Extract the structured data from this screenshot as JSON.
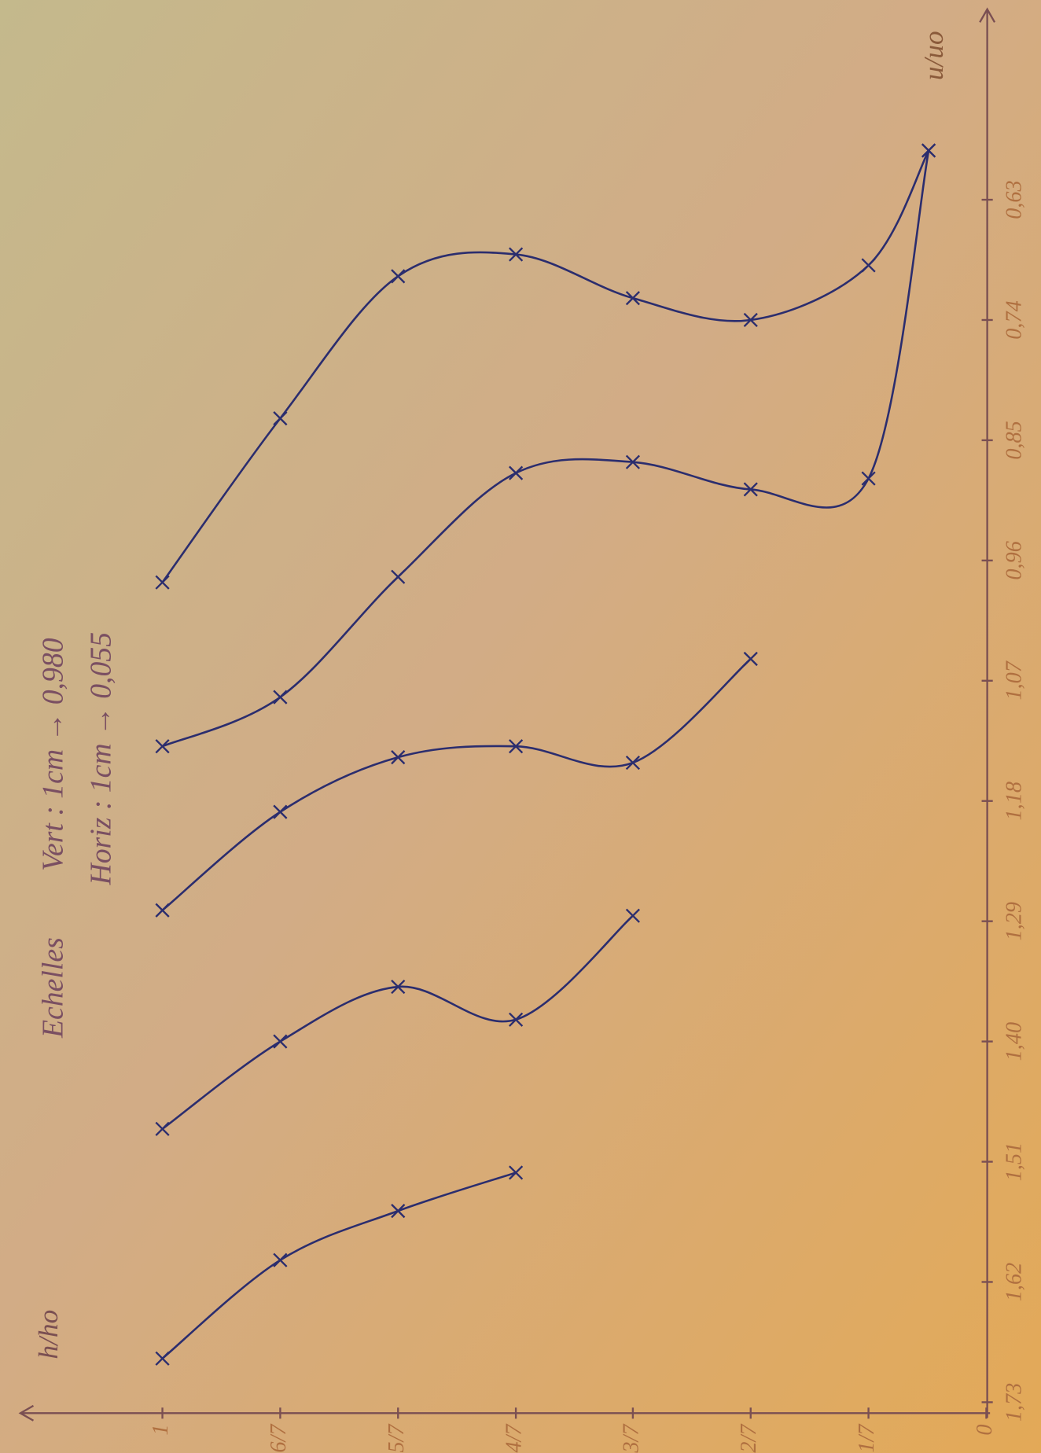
{
  "chart_data": {
    "type": "line",
    "notes": [
      "Echelles",
      "Vert : 1cm → 0,980",
      "Horiz : 1cm → 0,055"
    ],
    "x_label": "h/ho",
    "y_label": "u/uo",
    "xlim": [
      0,
      1.16
    ],
    "ylim": [
      0.46,
      1.74
    ],
    "xticks": [
      {
        "value": 1,
        "label": "1"
      },
      {
        "value": 0.857,
        "label": "6/7"
      },
      {
        "value": 0.714,
        "label": "5/7"
      },
      {
        "value": 0.571,
        "label": "4/7"
      },
      {
        "value": 0.429,
        "label": "3/7"
      },
      {
        "value": 0.286,
        "label": "2/7"
      },
      {
        "value": 0.143,
        "label": "1/7"
      },
      0
    ],
    "yticks": [
      {
        "value": 1.73,
        "label": "1,73"
      },
      {
        "value": 1.62,
        "label": "1,62"
      },
      {
        "value": 1.51,
        "label": "1,51"
      },
      {
        "value": 1.4,
        "label": "1,40"
      },
      {
        "value": 1.29,
        "label": "1,29"
      },
      {
        "value": 1.18,
        "label": "1,18"
      },
      {
        "value": 1.07,
        "label": "1,07"
      },
      {
        "value": 0.96,
        "label": "0,96"
      },
      {
        "value": 0.85,
        "label": "0,85"
      },
      {
        "value": 0.74,
        "label": "0,74"
      },
      {
        "value": 0.63,
        "label": "0,63"
      }
    ],
    "color": "#2b2d6e",
    "axis_color": "#7a4f52",
    "series": [
      {
        "x": [
          1,
          0.857,
          0.714,
          0.571
        ],
        "values": [
          1.69,
          1.6,
          1.555,
          1.52
        ]
      },
      {
        "x": [
          1,
          0.857,
          0.714,
          0.571,
          0.429
        ],
        "values": [
          1.48,
          1.4,
          1.35,
          1.38,
          1.285
        ]
      },
      {
        "x": [
          1,
          0.857,
          0.714,
          0.571,
          0.429,
          0.286
        ],
        "values": [
          1.28,
          1.19,
          1.14,
          1.13,
          1.145,
          1.05
        ]
      },
      {
        "x": [
          1,
          0.857,
          0.714,
          0.571,
          0.429,
          0.286,
          0.143,
          0.07
        ],
        "values": [
          1.13,
          1.085,
          0.975,
          0.88,
          0.87,
          0.895,
          0.885,
          0.585
        ]
      },
      {
        "x": [
          1,
          0.857,
          0.714,
          0.571,
          0.429,
          0.286,
          0.143,
          0.07
        ],
        "values": [
          0.98,
          0.83,
          0.7,
          0.68,
          0.72,
          0.74,
          0.69,
          0.585
        ]
      }
    ]
  }
}
